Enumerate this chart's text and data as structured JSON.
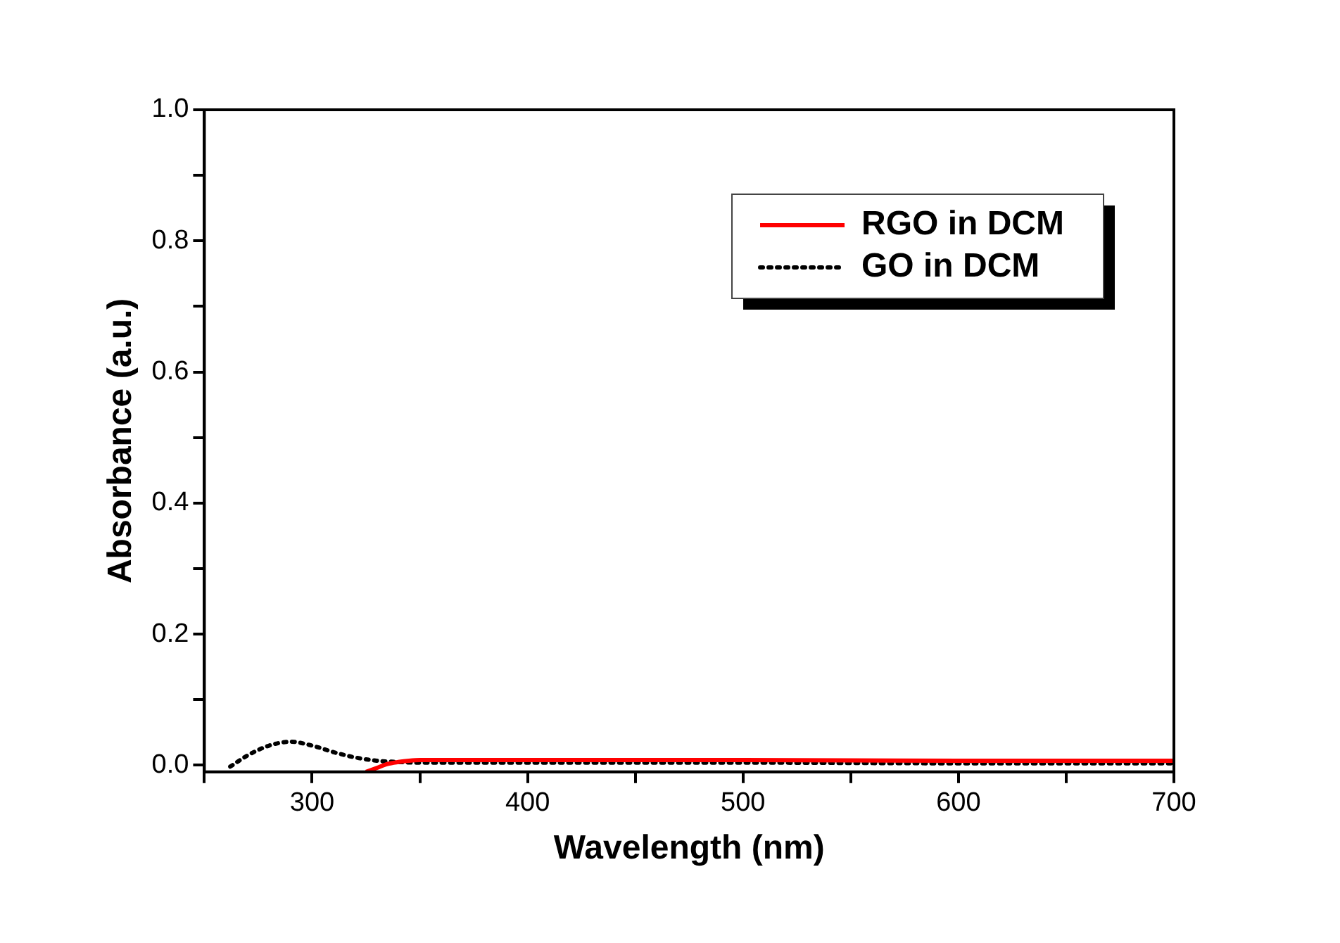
{
  "chart_data": {
    "type": "line",
    "xlabel": "Wavelength (nm)",
    "ylabel": "Absorbance (a.u.)",
    "xlim": [
      250,
      700
    ],
    "xticks": [
      {
        "value": 250,
        "label": null
      },
      300,
      {
        "value": 350,
        "label": null
      },
      400,
      {
        "value": 450,
        "label": null
      },
      500,
      {
        "value": 550,
        "label": null
      },
      600,
      {
        "value": 650,
        "label": null
      },
      700
    ],
    "ylim": [
      -0.01,
      1.0
    ],
    "yticks": [
      {
        "value": 0,
        "label": "0.0"
      },
      {
        "value": 0.1,
        "label": null
      },
      {
        "value": 0.2,
        "label": "0.2"
      },
      {
        "value": 0.3,
        "label": null
      },
      {
        "value": 0.4,
        "label": "0.4"
      },
      {
        "value": 0.5,
        "label": null
      },
      {
        "value": 0.6,
        "label": "0.6"
      },
      {
        "value": 0.7,
        "label": null
      },
      {
        "value": 0.8,
        "label": "0.8"
      },
      {
        "value": 0.9,
        "label": null
      },
      {
        "value": 1,
        "label": "1.0"
      }
    ],
    "grid": false,
    "legend": "top right",
    "marker": "none",
    "series": [
      {
        "name": "RGO in DCM",
        "color": "#ff0000",
        "line_style": "solid",
        "x": [
          325,
          330,
          335,
          340,
          345,
          350,
          400,
          500,
          600,
          700
        ],
        "values": [
          -0.01,
          -0.004,
          0.002,
          0.005,
          0.007,
          0.008,
          0.008,
          0.008,
          0.007,
          0.007
        ]
      },
      {
        "name": "GO in DCM",
        "color": "#000000",
        "line_style": "dotted",
        "x": [
          262,
          270,
          280,
          290,
          300,
          310,
          320,
          330,
          340,
          350,
          400,
          500,
          600,
          700
        ],
        "values": [
          -0.002,
          0.015,
          0.03,
          0.036,
          0.03,
          0.02,
          0.012,
          0.007,
          0.005,
          0.004,
          0.004,
          0.004,
          0.003,
          0.003
        ]
      }
    ]
  }
}
